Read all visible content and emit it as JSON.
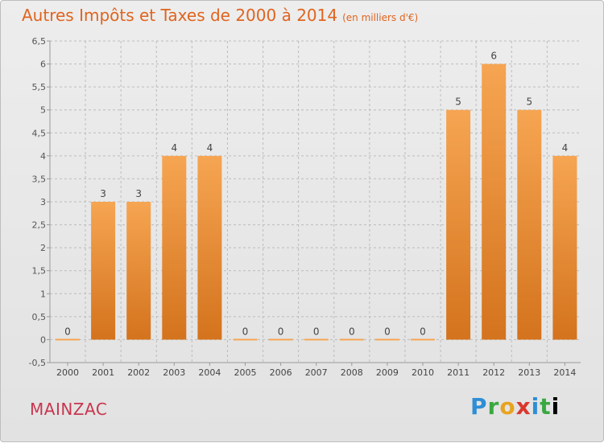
{
  "title": "Autres Impôts et Taxes de 2000 à 2014",
  "unit": "(en milliers d'€)",
  "commune": "MAINZAC",
  "brand": [
    "P",
    "r",
    "o",
    "x",
    "i",
    "t",
    "i"
  ],
  "colors": {
    "bar_light": "#f6a552",
    "bar_dark": "#d4731d",
    "title": "#e0641f",
    "commune": "#c8364f",
    "grid": "#bcbcbc"
  },
  "chart_data": {
    "type": "bar",
    "categories": [
      "2000",
      "2001",
      "2002",
      "2003",
      "2004",
      "2005",
      "2006",
      "2007",
      "2008",
      "2009",
      "2010",
      "2011",
      "2012",
      "2013",
      "2014"
    ],
    "values": [
      0,
      3,
      3,
      4,
      4,
      0,
      0,
      0,
      0,
      0,
      0,
      5,
      6,
      5,
      4
    ],
    "data_labels": [
      "0",
      "3",
      "3",
      "4",
      "4",
      "0",
      "0",
      "0",
      "0",
      "0",
      "0",
      "5",
      "6",
      "5",
      "4"
    ],
    "yticks": [
      "-0,5",
      "0",
      "0,5",
      "1",
      "1,5",
      "2",
      "2,5",
      "3",
      "3,5",
      "4",
      "4,5",
      "5",
      "5,5",
      "6",
      "6,5"
    ],
    "ytick_values": [
      -0.5,
      0,
      0.5,
      1,
      1.5,
      2,
      2.5,
      3,
      3.5,
      4,
      4.5,
      5,
      5.5,
      6,
      6.5
    ],
    "ylim": [
      -0.5,
      6.5
    ],
    "grid": true
  }
}
